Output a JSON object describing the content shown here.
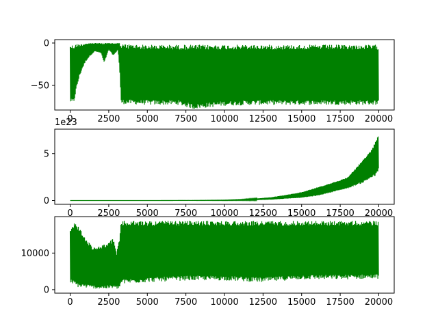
{
  "figure": {
    "background": "#ffffff",
    "line_color": "#008000"
  },
  "chart_data": [
    {
      "type": "line",
      "title": "",
      "xlabel": "",
      "ylabel": "",
      "xlim": [
        -1000,
        21000
      ],
      "ylim": [
        -79,
        4
      ],
      "grid": false,
      "x_ticks": [
        0,
        2500,
        5000,
        7500,
        10000,
        12500,
        15000,
        17500,
        20000
      ],
      "x_tick_labels": [
        "0",
        "2500",
        "5000",
        "7500",
        "10000",
        "12500",
        "15000",
        "17500",
        "20000"
      ],
      "y_ticks": [
        0,
        -50
      ],
      "y_tick_labels": [
        "0",
        "−50"
      ],
      "offset_text": "",
      "series": [
        {
          "color": "#008000",
          "envelope": [
            {
              "x": 0,
              "min": -70,
              "max": -1
            },
            {
              "x": 100,
              "min": -72,
              "max": -2
            },
            {
              "x": 250,
              "min": -70,
              "max": -2
            },
            {
              "x": 400,
              "min": -55,
              "max": -1
            },
            {
              "x": 600,
              "min": -40,
              "max": -1
            },
            {
              "x": 800,
              "min": -30,
              "max": -1
            },
            {
              "x": 1000,
              "min": -22,
              "max": 0
            },
            {
              "x": 1300,
              "min": -15,
              "max": 0
            },
            {
              "x": 1600,
              "min": -10,
              "max": 0
            },
            {
              "x": 2000,
              "min": -12,
              "max": 0
            },
            {
              "x": 2200,
              "min": -24,
              "max": 0
            },
            {
              "x": 2500,
              "min": -8,
              "max": 0
            },
            {
              "x": 2800,
              "min": -15,
              "max": 0
            },
            {
              "x": 3100,
              "min": -8,
              "max": 0
            },
            {
              "x": 3200,
              "min": -30,
              "max": 0
            },
            {
              "x": 3300,
              "min": -72,
              "max": -1
            },
            {
              "x": 5000,
              "min": -73,
              "max": -2
            },
            {
              "x": 7000,
              "min": -73,
              "max": -2
            },
            {
              "x": 8000,
              "min": -78,
              "max": -2
            },
            {
              "x": 10000,
              "min": -74,
              "max": -2
            },
            {
              "x": 12500,
              "min": -73,
              "max": -2
            },
            {
              "x": 15000,
              "min": -73,
              "max": -2
            },
            {
              "x": 17500,
              "min": -73,
              "max": -2
            },
            {
              "x": 20000,
              "min": -73,
              "max": -2
            }
          ]
        }
      ]
    },
    {
      "type": "line",
      "title": "",
      "xlabel": "",
      "ylabel": "",
      "xlim": [
        -1000,
        21000
      ],
      "ylim": [
        -0.4,
        7.6
      ],
      "grid": false,
      "x_ticks": [
        0,
        2500,
        5000,
        7500,
        10000,
        12500,
        15000,
        17500,
        20000
      ],
      "x_tick_labels": [
        "0",
        "2500",
        "5000",
        "7500",
        "10000",
        "12500",
        "15000",
        "17500",
        "20000"
      ],
      "y_ticks": [
        0,
        5
      ],
      "y_tick_labels": [
        "0",
        "5"
      ],
      "offset_text": "1e23",
      "series": [
        {
          "color": "#008000",
          "envelope": [
            {
              "x": 0,
              "min": 0,
              "max": 0
            },
            {
              "x": 5000,
              "min": 0,
              "max": 0
            },
            {
              "x": 8000,
              "min": 0,
              "max": 0.02
            },
            {
              "x": 10000,
              "min": 0,
              "max": 0.05
            },
            {
              "x": 11000,
              "min": 0.02,
              "max": 0.1
            },
            {
              "x": 12000,
              "min": 0.05,
              "max": 0.2
            },
            {
              "x": 13000,
              "min": 0.1,
              "max": 0.35
            },
            {
              "x": 14000,
              "min": 0.2,
              "max": 0.6
            },
            {
              "x": 15000,
              "min": 0.3,
              "max": 0.9
            },
            {
              "x": 16000,
              "min": 0.5,
              "max": 1.4
            },
            {
              "x": 17000,
              "min": 0.9,
              "max": 1.9
            },
            {
              "x": 18000,
              "min": 1.3,
              "max": 2.5
            },
            {
              "x": 19000,
              "min": 1.9,
              "max": 4.4
            },
            {
              "x": 19500,
              "min": 2.4,
              "max": 5.3
            },
            {
              "x": 19800,
              "min": 2.6,
              "max": 6.4
            },
            {
              "x": 20000,
              "min": 3.2,
              "max": 7.3
            }
          ]
        }
      ]
    },
    {
      "type": "line",
      "title": "",
      "xlabel": "",
      "ylabel": "",
      "xlim": [
        -1000,
        21000
      ],
      "ylim": [
        -950,
        19950
      ],
      "grid": false,
      "x_ticks": [
        0,
        2500,
        5000,
        7500,
        10000,
        12500,
        15000,
        17500,
        20000
      ],
      "x_tick_labels": [
        "0",
        "2500",
        "5000",
        "7500",
        "10000",
        "12500",
        "15000",
        "17500",
        "20000"
      ],
      "y_ticks": [
        0,
        10000
      ],
      "y_tick_labels": [
        "0",
        "10000"
      ],
      "offset_text": "",
      "series": [
        {
          "color": "#008000",
          "envelope": [
            {
              "x": 0,
              "min": 2000,
              "max": 16000
            },
            {
              "x": 100,
              "min": 1500,
              "max": 17500
            },
            {
              "x": 300,
              "min": 1000,
              "max": 18500
            },
            {
              "x": 600,
              "min": 500,
              "max": 17000
            },
            {
              "x": 1000,
              "min": 500,
              "max": 14000
            },
            {
              "x": 1500,
              "min": 300,
              "max": 11500
            },
            {
              "x": 2000,
              "min": 200,
              "max": 12000
            },
            {
              "x": 2500,
              "min": 200,
              "max": 13000
            },
            {
              "x": 2800,
              "min": 300,
              "max": 14000
            },
            {
              "x": 3000,
              "min": 200,
              "max": 10000
            },
            {
              "x": 3200,
              "min": 200,
              "max": 14000
            },
            {
              "x": 3300,
              "min": 1500,
              "max": 18800
            },
            {
              "x": 5000,
              "min": 2000,
              "max": 18800
            },
            {
              "x": 7500,
              "min": 2500,
              "max": 18800
            },
            {
              "x": 10000,
              "min": 2500,
              "max": 18800
            },
            {
              "x": 12500,
              "min": 2000,
              "max": 18800
            },
            {
              "x": 15000,
              "min": 2800,
              "max": 18800
            },
            {
              "x": 17500,
              "min": 2800,
              "max": 18800
            },
            {
              "x": 20000,
              "min": 3000,
              "max": 18800
            }
          ]
        }
      ]
    }
  ]
}
